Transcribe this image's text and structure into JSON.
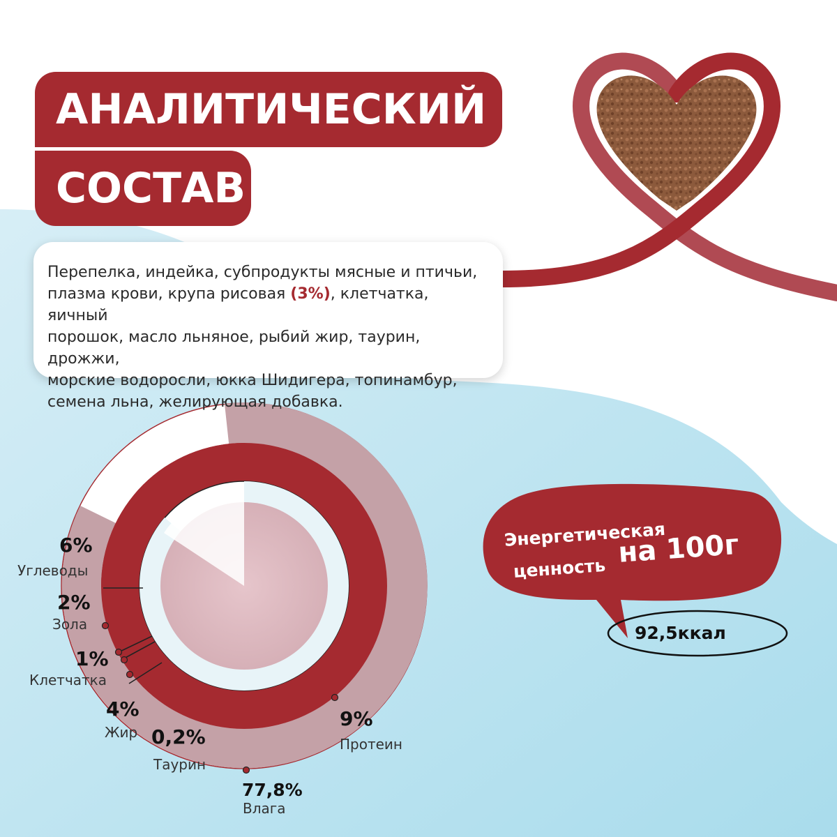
{
  "header": {
    "title_line1": "АНАЛИТИЧЕСКИЙ",
    "title_line2": "СОСТАВ"
  },
  "ingredients": {
    "line1": "Перепелка, индейка, субпродукты мясные и птичьи,",
    "line2_before": "плазма крови, крупа рисовая ",
    "line2_highlight": "(3%)",
    "line2_after": ", клетчатка, яичный",
    "line3": "порошок, масло льняное, рыбий жир, таурин, дрожжи,",
    "line4": "морские водоросли, юкка Шидигера, топинамбур,",
    "line5": "семена льна, желирующая добавка."
  },
  "composition": [
    {
      "name": "Углеводы",
      "value": "6%"
    },
    {
      "name": "Зола",
      "value": "2%"
    },
    {
      "name": "Клетчатка",
      "value": "1%"
    },
    {
      "name": "Жир",
      "value": "4%"
    },
    {
      "name": "Таурин",
      "value": "0,2%"
    },
    {
      "name": "Протеин",
      "value": "9%"
    },
    {
      "name": "Влага",
      "value": "77,8%"
    }
  ],
  "energy": {
    "label_line1": "Энергетическая",
    "label_line2": "ценность",
    "per": "на 100г",
    "value": "92,5ккал"
  },
  "colors": {
    "brand_red": "#a52a30",
    "muted_rose": "#c4a1a7",
    "sky_blue": "#bfe3f0"
  },
  "icons": {
    "heart": "heart-ribbon-icon"
  }
}
